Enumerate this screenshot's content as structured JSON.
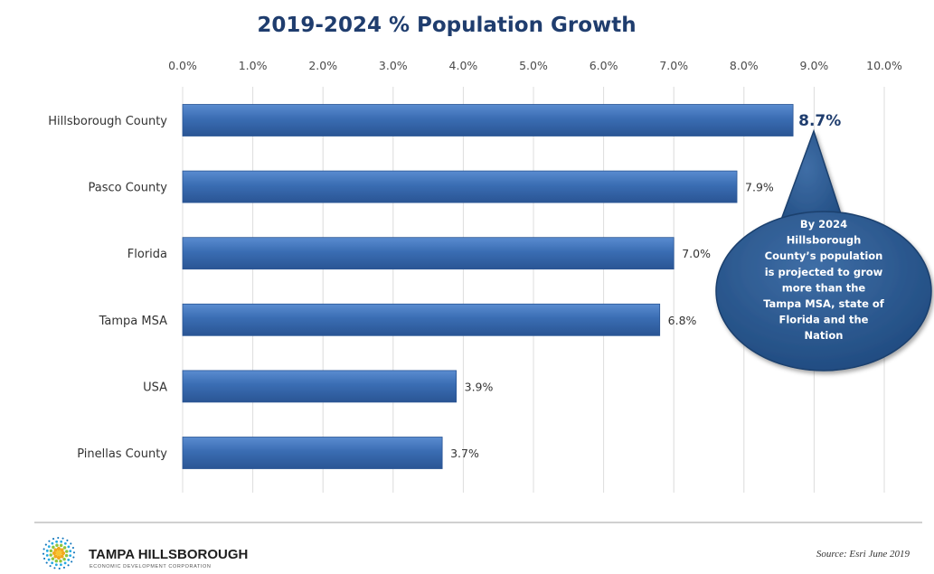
{
  "chart_data": {
    "type": "bar",
    "orientation": "horizontal",
    "title": "2019-2024 % Population Growth",
    "categories": [
      "Hillsborough County",
      "Pasco County",
      "Florida",
      "Tampa MSA",
      "USA",
      "Pinellas County"
    ],
    "values": [
      8.7,
      7.9,
      7.0,
      6.8,
      3.9,
      3.7
    ],
    "value_labels": [
      "8.7%",
      "7.9%",
      "7.0%",
      "6.8%",
      "3.9%",
      "3.7%"
    ],
    "highlight_index": 0,
    "xlim": [
      0,
      10
    ],
    "xticks": [
      "0.0%",
      "1.0%",
      "2.0%",
      "3.0%",
      "4.0%",
      "5.0%",
      "6.0%",
      "7.0%",
      "8.0%",
      "9.0%",
      "10.0%"
    ],
    "x_axis_position": "top",
    "grid": "vertical",
    "bar_color": "#3a6db3",
    "annotation": {
      "lines": [
        "By 2024",
        "Hillsborough",
        "County’s population",
        "is projected to grow",
        "more than the",
        "Tampa MSA, state of",
        "Florida and the",
        "Nation"
      ],
      "color": "#2b5589"
    }
  },
  "footer": {
    "logo_name": "TAMPA HILLSBOROUGH",
    "logo_subtitle": "ECONOMIC DEVELOPMENT CORPORATION",
    "logo_icon": "sunburst-icon",
    "source": "Source:  Esri June 2019"
  }
}
